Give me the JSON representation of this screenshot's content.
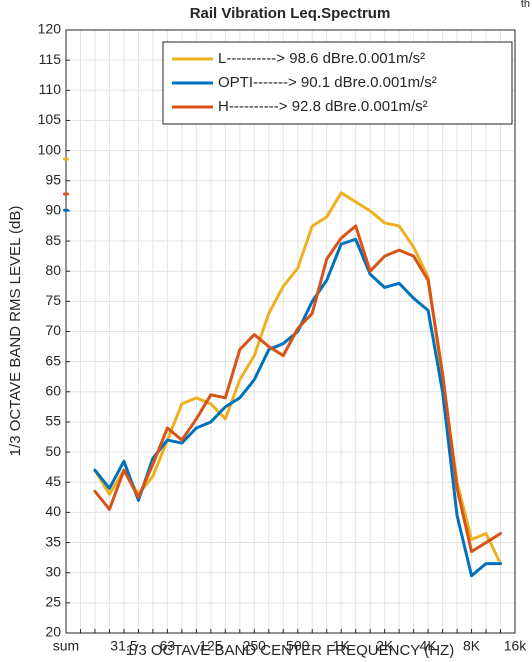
{
  "chart_data": {
    "type": "line",
    "title": "Rail Vibration Leq.Spectrum",
    "corner_text": "th",
    "x_label": "1/3 OCTAVE BAND CENTER FREQUENCY (HZ)",
    "y_label": "1/3 OCTAVE BAND RMS LEVEL (dB)",
    "categories": [
      "sum",
      null,
      null,
      null,
      "31.5",
      null,
      null,
      "63",
      null,
      null,
      "125",
      null,
      null,
      "250",
      null,
      null,
      "500",
      null,
      null,
      "1K",
      null,
      null,
      "2K",
      null,
      null,
      "4K",
      null,
      null,
      "8K",
      null,
      null,
      "16k"
    ],
    "series": [
      {
        "name": "L----------> 98.6 dBre.0.001m/s²",
        "color": "#EDB120",
        "values": [
          98.6,
          null,
          47,
          43,
          47,
          43,
          46,
          52,
          58,
          59,
          58,
          55.5,
          62,
          66,
          73,
          77.5,
          80.5,
          87.5,
          89,
          93,
          91.5,
          90,
          88,
          87.5,
          84,
          79,
          62,
          45,
          35.5,
          36.5,
          31.5,
          null
        ]
      },
      {
        "name": "OPTI-------> 90.1 dBre.0.001m/s²",
        "color": "#0072BD",
        "values": [
          90.1,
          null,
          47,
          44,
          48.5,
          42,
          49,
          52,
          51.5,
          54,
          55,
          57.5,
          59,
          62,
          67,
          68,
          70,
          75,
          78.5,
          84.5,
          85.3,
          79.5,
          77.3,
          78,
          75.5,
          73.5,
          60,
          39.5,
          29.5,
          31.5,
          31.5,
          null
        ]
      },
      {
        "name": "H----------> 92.8 dBre.0.001m/s²",
        "color": "#D95319",
        "values": [
          92.8,
          null,
          43.5,
          40.5,
          47,
          42.5,
          48,
          54,
          52,
          55.5,
          59.5,
          59,
          67,
          69.5,
          67.5,
          66,
          70.5,
          73,
          82,
          85.5,
          87.5,
          80,
          82.5,
          83.5,
          82.5,
          78.5,
          63,
          44,
          33.5,
          35,
          36.5,
          null
        ]
      }
    ],
    "ylim": [
      20,
      120
    ],
    "yticks": [
      20,
      25,
      30,
      35,
      40,
      45,
      50,
      55,
      60,
      65,
      70,
      75,
      80,
      85,
      90,
      95,
      100,
      105,
      110,
      115,
      120
    ],
    "grid": true,
    "legend": "upper right"
  }
}
